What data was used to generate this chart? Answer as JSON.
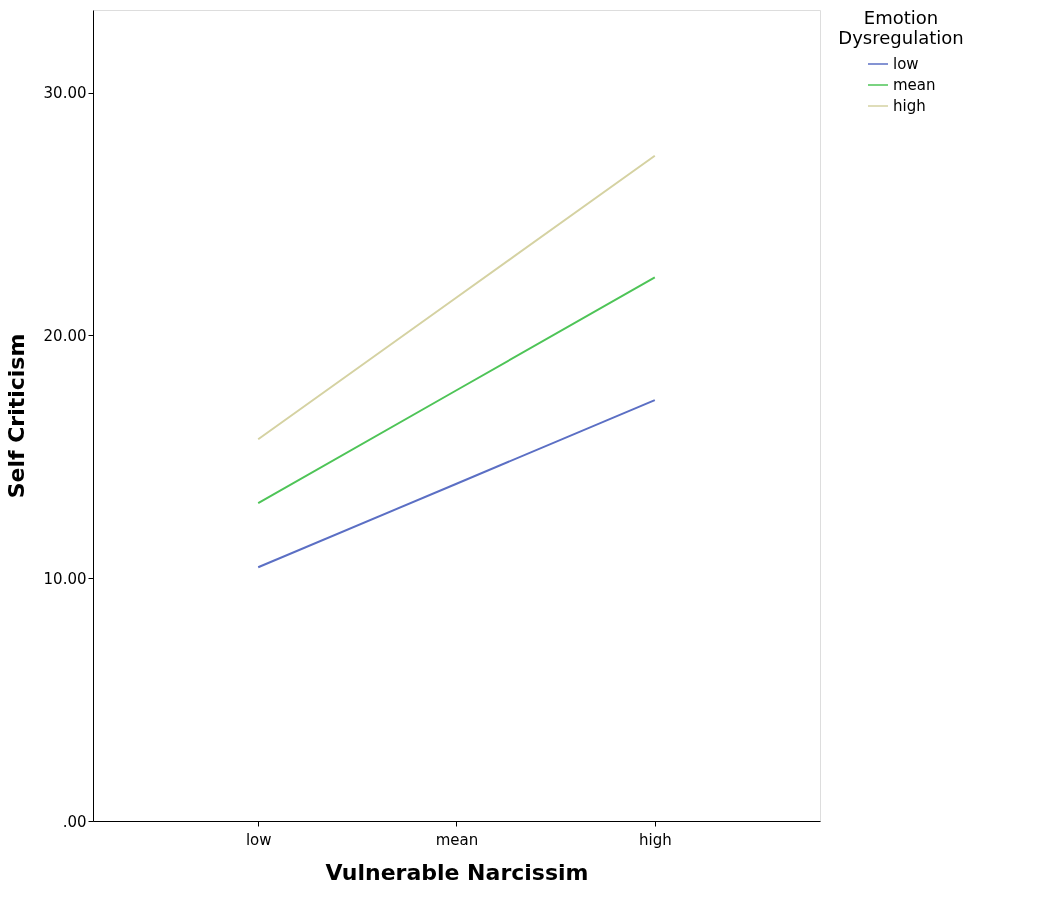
{
  "chart_data": {
    "type": "line",
    "xlabel": "Vulnerable Narcissim",
    "ylabel": "Self Criticism",
    "legend_title": "Emotion Dysregulation",
    "categories": [
      "low",
      "mean",
      "high"
    ],
    "series": [
      {
        "name": "low",
        "color": "#5b6fc4",
        "values": [
          10.45,
          13.89,
          17.33
        ]
      },
      {
        "name": "mean",
        "color": "#4ec457",
        "values": [
          13.09,
          17.74,
          22.39
        ]
      },
      {
        "name": "high",
        "color": "#d5d2a2",
        "values": [
          15.72,
          21.56,
          27.4
        ]
      }
    ],
    "ylim": [
      0,
      33.4
    ],
    "yticks": [
      {
        "value": 0,
        "label": ".00"
      },
      {
        "value": 10,
        "label": "10.00"
      },
      {
        "value": 20,
        "label": "20.00"
      },
      {
        "value": 30,
        "label": "30.00"
      }
    ],
    "grid": false,
    "legend": "top right",
    "marker": "none",
    "line_style": "solid"
  }
}
